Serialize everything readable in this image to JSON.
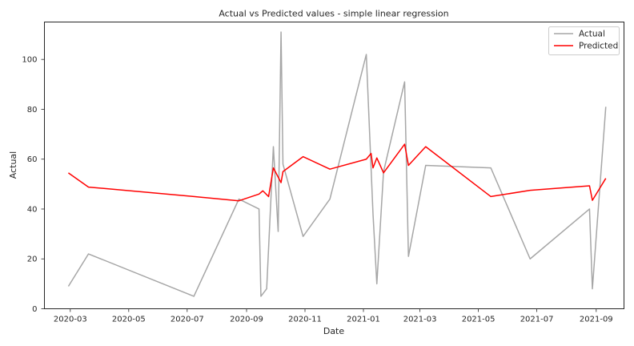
{
  "chart_data": {
    "type": "line",
    "title": "Actual vs Predicted values - simple linear regression",
    "xlabel": "Date",
    "ylabel": "Actual",
    "x_axis_type": "date",
    "xlim": [
      "2020-02-03",
      "2021-09-30"
    ],
    "ylim": [
      0,
      115
    ],
    "x_tick_labels": [
      "2020-03",
      "2020-05",
      "2020-07",
      "2020-09",
      "2020-11",
      "2021-01",
      "2021-03",
      "2021-05",
      "2021-07",
      "2021-09"
    ],
    "x_tick_dates": [
      "2020-03-01",
      "2020-05-01",
      "2020-07-01",
      "2020-09-01",
      "2020-11-01",
      "2021-01-01",
      "2021-03-01",
      "2021-05-01",
      "2021-07-01",
      "2021-09-01"
    ],
    "y_ticks": [
      0,
      20,
      40,
      60,
      80,
      100
    ],
    "grid": false,
    "legend_position": "top-right",
    "series": [
      {
        "name": "Actual",
        "color": "#a6a6a6",
        "points": [
          [
            "2020-02-28",
            9
          ],
          [
            "2020-03-20",
            22
          ],
          [
            "2020-07-08",
            5
          ],
          [
            "2020-08-24",
            44
          ],
          [
            "2020-09-14",
            40
          ],
          [
            "2020-09-16",
            5
          ],
          [
            "2020-09-22",
            8
          ],
          [
            "2020-09-29",
            65
          ],
          [
            "2020-10-04",
            31
          ],
          [
            "2020-10-07",
            111
          ],
          [
            "2020-10-09",
            58
          ],
          [
            "2020-10-30",
            29
          ],
          [
            "2020-11-27",
            44
          ],
          [
            "2021-01-04",
            102
          ],
          [
            "2021-01-11",
            38
          ],
          [
            "2021-01-15",
            10
          ],
          [
            "2021-01-22",
            55
          ],
          [
            "2021-02-13",
            91
          ],
          [
            "2021-02-17",
            21
          ],
          [
            "2021-03-07",
            57.5
          ],
          [
            "2021-05-14",
            56.5
          ],
          [
            "2021-06-24",
            20
          ],
          [
            "2021-08-25",
            40
          ],
          [
            "2021-08-28",
            8
          ],
          [
            "2021-09-11",
            81
          ]
        ]
      },
      {
        "name": "Predicted",
        "color": "#ff0000",
        "points": [
          [
            "2020-02-28",
            54.5
          ],
          [
            "2020-03-20",
            48.8
          ],
          [
            "2020-07-08",
            45
          ],
          [
            "2020-08-24",
            43.3
          ],
          [
            "2020-09-14",
            46
          ],
          [
            "2020-09-18",
            47.3
          ],
          [
            "2020-09-24",
            45
          ],
          [
            "2020-09-29",
            56.5
          ],
          [
            "2020-10-07",
            50.6
          ],
          [
            "2020-10-09",
            55
          ],
          [
            "2020-10-30",
            61
          ],
          [
            "2020-11-27",
            56
          ],
          [
            "2021-01-04",
            60
          ],
          [
            "2021-01-09",
            62.3
          ],
          [
            "2021-01-11",
            56.5
          ],
          [
            "2021-01-15",
            60.5
          ],
          [
            "2021-01-22",
            54.5
          ],
          [
            "2021-02-13",
            66
          ],
          [
            "2021-02-17",
            57.5
          ],
          [
            "2021-03-07",
            65
          ],
          [
            "2021-05-14",
            45
          ],
          [
            "2021-06-24",
            47.5
          ],
          [
            "2021-08-25",
            49.3
          ],
          [
            "2021-08-28",
            43.5
          ],
          [
            "2021-09-11",
            52.3
          ]
        ]
      }
    ]
  }
}
